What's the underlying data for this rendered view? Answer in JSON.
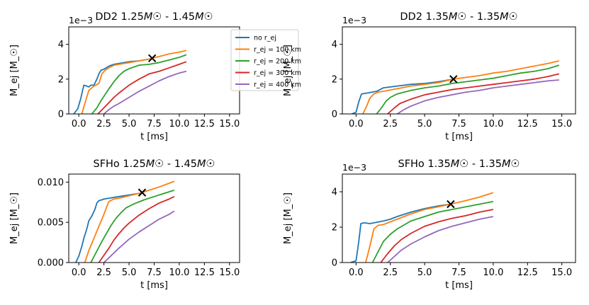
{
  "figure": {
    "ylabel": "M_ej [M_☉]",
    "xlabel": "t [ms]",
    "legend_box_color": "#cccccc"
  },
  "chart_data": [
    {
      "type": "line",
      "title": "DD2 1.25M☉ - 1.45M☉",
      "title_parts": {
        "eos": "DD2",
        "m1": "1.25",
        "m2": "1.45",
        "unit": "M☉"
      },
      "scale_label": "1e−3",
      "xlim": [
        -1,
        16
      ],
      "ylim": [
        0,
        5
      ],
      "xticks": [
        0,
        2.5,
        5,
        7.5,
        10,
        12.5,
        15
      ],
      "xtick_labels": [
        "0.0",
        "2.5",
        "5.0",
        "7.5",
        "10.0",
        "12.5",
        "15.0"
      ],
      "yticks": [
        0,
        2,
        4
      ],
      "ytick_labels": [
        "0",
        "2",
        "4"
      ],
      "legend": true,
      "marker": {
        "x": 7.3,
        "y": 3.2,
        "symbol": "x"
      },
      "series": [
        {
          "name": "no r_ej",
          "color": "#1f77b4",
          "x": [
            -0.5,
            -0.1,
            0.2,
            0.5,
            0.8,
            1.0,
            1.2,
            1.5,
            1.8,
            2.0,
            2.2,
            2.6,
            3.0,
            3.5,
            4.0,
            5.0,
            6.0,
            7.0,
            7.3
          ],
          "y": [
            0,
            0.3,
            0.9,
            1.65,
            1.6,
            1.55,
            1.65,
            1.65,
            2.0,
            2.3,
            2.5,
            2.6,
            2.75,
            2.85,
            2.9,
            3.0,
            3.05,
            3.15,
            3.2
          ]
        },
        {
          "name": "r_ej = 100 km",
          "color": "#ff7f0e",
          "x": [
            0.3,
            0.6,
            1.0,
            1.5,
            2.0,
            2.3,
            2.6,
            3.0,
            3.5,
            4.0,
            5.0,
            6.0,
            7.0,
            7.3,
            8.0,
            9.0,
            10.0,
            10.7
          ],
          "y": [
            0,
            0.6,
            1.35,
            1.6,
            1.75,
            2.3,
            2.5,
            2.65,
            2.8,
            2.85,
            2.95,
            3.05,
            3.15,
            3.2,
            3.3,
            3.45,
            3.55,
            3.65
          ]
        },
        {
          "name": "r_ej = 200 km",
          "color": "#2ca02c",
          "x": [
            1.3,
            1.8,
            2.2,
            2.6,
            3.0,
            3.5,
            4.0,
            4.5,
            5.0,
            6.0,
            7.0,
            8.0,
            9.0,
            10.0,
            10.7
          ],
          "y": [
            0,
            0.35,
            0.75,
            1.1,
            1.45,
            1.85,
            2.2,
            2.45,
            2.6,
            2.8,
            2.85,
            2.95,
            3.1,
            3.25,
            3.4
          ]
        },
        {
          "name": "r_ej = 300 km",
          "color": "#d62728",
          "x": [
            1.9,
            2.5,
            3.0,
            3.5,
            4.0,
            5.0,
            6.0,
            7.0,
            8.0,
            9.0,
            10.0,
            10.7
          ],
          "y": [
            0,
            0.35,
            0.65,
            0.95,
            1.2,
            1.65,
            2.0,
            2.3,
            2.45,
            2.65,
            2.85,
            3.0
          ]
        },
        {
          "name": "r_ej = 400 km",
          "color": "#9467bd",
          "x": [
            2.5,
            3.0,
            3.5,
            4.0,
            5.0,
            6.0,
            7.0,
            8.0,
            9.0,
            10.0,
            10.7
          ],
          "y": [
            0,
            0.25,
            0.45,
            0.6,
            0.95,
            1.3,
            1.6,
            1.9,
            2.15,
            2.35,
            2.45
          ]
        }
      ]
    },
    {
      "type": "line",
      "title": "DD2 1.35M☉ - 1.35M☉",
      "title_parts": {
        "eos": "DD2",
        "m1": "1.35",
        "m2": "1.35",
        "unit": "M☉"
      },
      "scale_label": "1e−3",
      "xlim": [
        -1,
        16
      ],
      "ylim": [
        0,
        5
      ],
      "xticks": [
        0,
        2.5,
        5,
        7.5,
        10,
        12.5,
        15
      ],
      "xtick_labels": [
        "0.0",
        "2.5",
        "5.0",
        "7.5",
        "10.0",
        "12.5",
        "15.0"
      ],
      "yticks": [
        0,
        2,
        4
      ],
      "ytick_labels": [
        "0",
        "2",
        "4"
      ],
      "legend": false,
      "marker": {
        "x": 7.1,
        "y": 2.0,
        "symbol": "x"
      },
      "series": [
        {
          "name": "no r_ej",
          "color": "#1f77b4",
          "x": [
            -0.3,
            0.0,
            0.2,
            0.4,
            0.8,
            1.5,
            2.0,
            3.0,
            4.0,
            5.0,
            6.0,
            7.1
          ],
          "y": [
            0,
            0.1,
            0.7,
            1.15,
            1.2,
            1.3,
            1.5,
            1.6,
            1.7,
            1.75,
            1.85,
            2.0
          ]
        },
        {
          "name": "r_ej = 100 km",
          "color": "#ff7f0e",
          "x": [
            0.5,
            0.8,
            1.0,
            1.3,
            1.6,
            2.0,
            3.0,
            4.0,
            5.0,
            6.0,
            7.1,
            8.0,
            9.0,
            10.0,
            11.0,
            12.0,
            13.0,
            14.0,
            14.8
          ],
          "y": [
            0,
            0.5,
            0.9,
            1.15,
            1.25,
            1.3,
            1.45,
            1.6,
            1.7,
            1.8,
            2.0,
            2.1,
            2.2,
            2.35,
            2.45,
            2.6,
            2.75,
            2.9,
            3.05
          ]
        },
        {
          "name": "r_ej = 200 km",
          "color": "#2ca02c",
          "x": [
            1.5,
            1.9,
            2.2,
            2.5,
            3.0,
            4.0,
            5.0,
            6.0,
            7.0,
            8.0,
            9.0,
            10.0,
            11.0,
            12.0,
            13.0,
            14.0,
            14.8
          ],
          "y": [
            0,
            0.4,
            0.75,
            0.95,
            1.15,
            1.35,
            1.5,
            1.6,
            1.75,
            1.85,
            1.95,
            2.05,
            2.2,
            2.35,
            2.45,
            2.6,
            2.8
          ]
        },
        {
          "name": "r_ej = 300 km",
          "color": "#d62728",
          "x": [
            2.3,
            2.8,
            3.2,
            4.0,
            5.0,
            6.0,
            7.0,
            8.0,
            9.0,
            10.0,
            11.0,
            12.0,
            13.0,
            14.0,
            14.8
          ],
          "y": [
            0,
            0.35,
            0.6,
            0.85,
            1.1,
            1.25,
            1.4,
            1.5,
            1.6,
            1.7,
            1.8,
            1.9,
            2.0,
            2.15,
            2.3
          ]
        },
        {
          "name": "r_ej = 400 km",
          "color": "#9467bd",
          "x": [
            3.0,
            3.5,
            4.0,
            5.0,
            6.0,
            7.0,
            8.0,
            9.0,
            10.0,
            11.0,
            12.0,
            13.0,
            14.0,
            14.8
          ],
          "y": [
            0,
            0.25,
            0.45,
            0.75,
            0.95,
            1.1,
            1.25,
            1.35,
            1.5,
            1.6,
            1.7,
            1.8,
            1.9,
            1.95
          ]
        }
      ]
    },
    {
      "type": "line",
      "title": "SFHo 1.25M☉ - 1.45M☉",
      "title_parts": {
        "eos": "SFHo",
        "m1": "1.25",
        "m2": "1.45",
        "unit": "M☉"
      },
      "scale_label": "",
      "xlim": [
        -1,
        16
      ],
      "ylim": [
        0,
        0.011
      ],
      "xticks": [
        0,
        2.5,
        5,
        7.5,
        10,
        12.5,
        15
      ],
      "xtick_labels": [
        "0.0",
        "2.5",
        "5.0",
        "7.5",
        "10.0",
        "12.5",
        "15.0"
      ],
      "yticks": [
        0,
        0.005,
        0.01
      ],
      "ytick_labels": [
        "0.000",
        "0.005",
        "0.010"
      ],
      "legend": false,
      "marker": {
        "x": 6.3,
        "y": 0.0087,
        "symbol": "x"
      },
      "series": [
        {
          "name": "no r_ej",
          "color": "#1f77b4",
          "x": [
            -0.3,
            0.0,
            0.3,
            0.5,
            0.8,
            1.0,
            1.3,
            1.6,
            1.8,
            2.0,
            2.3,
            2.5,
            3.0,
            3.5,
            4.0,
            5.0,
            6.0,
            6.3
          ],
          "y": [
            0,
            0.0008,
            0.002,
            0.003,
            0.0042,
            0.0052,
            0.0058,
            0.0066,
            0.0074,
            0.0077,
            0.0078,
            0.0079,
            0.008,
            0.0081,
            0.0082,
            0.0084,
            0.0086,
            0.0087
          ]
        },
        {
          "name": "r_ej = 100 km",
          "color": "#ff7f0e",
          "x": [
            0.6,
            1.0,
            1.5,
            2.0,
            2.5,
            2.8,
            3.0,
            3.5,
            4.0,
            5.0,
            6.0,
            6.3,
            7.0,
            8.0,
            9.5
          ],
          "y": [
            0,
            0.0015,
            0.003,
            0.0045,
            0.006,
            0.007,
            0.0076,
            0.0079,
            0.008,
            0.0083,
            0.0086,
            0.0087,
            0.009,
            0.0094,
            0.0101
          ]
        },
        {
          "name": "r_ej = 200 km",
          "color": "#2ca02c",
          "x": [
            1.2,
            1.7,
            2.2,
            2.7,
            3.2,
            3.7,
            4.2,
            4.7,
            5.5,
            6.5,
            7.5,
            8.5,
            9.5
          ],
          "y": [
            0,
            0.0012,
            0.0024,
            0.0035,
            0.0046,
            0.0055,
            0.0062,
            0.0068,
            0.0073,
            0.0078,
            0.0082,
            0.0086,
            0.009
          ]
        },
        {
          "name": "r_ej = 300 km",
          "color": "#d62728",
          "x": [
            2.0,
            2.5,
            3.0,
            3.5,
            4.0,
            4.5,
            5.0,
            6.0,
            7.0,
            8.0,
            9.0,
            9.5
          ],
          "y": [
            0,
            0.0009,
            0.0018,
            0.0028,
            0.0036,
            0.0043,
            0.0049,
            0.0059,
            0.0067,
            0.0074,
            0.0079,
            0.0082
          ]
        },
        {
          "name": "r_ej = 400 km",
          "color": "#9467bd",
          "x": [
            2.5,
            3.0,
            3.5,
            4.0,
            5.0,
            6.0,
            7.0,
            8.0,
            9.0,
            9.5
          ],
          "y": [
            0,
            0.0006,
            0.0012,
            0.0018,
            0.0029,
            0.0038,
            0.0046,
            0.0054,
            0.006,
            0.0064
          ]
        }
      ]
    },
    {
      "type": "line",
      "title": "SFHo 1.35M☉ - 1.35M☉",
      "title_parts": {
        "eos": "SFHo",
        "m1": "1.35",
        "m2": "1.35",
        "unit": "M☉"
      },
      "scale_label": "1e−3",
      "xlim": [
        -1,
        16
      ],
      "ylim": [
        0,
        5
      ],
      "xticks": [
        0,
        2.5,
        5,
        7.5,
        10,
        12.5,
        15
      ],
      "xtick_labels": [
        "0.0",
        "2.5",
        "5.0",
        "7.5",
        "10.0",
        "12.5",
        "15.0"
      ],
      "yticks": [
        0,
        2,
        4
      ],
      "ytick_labels": [
        "0",
        "2",
        "4"
      ],
      "legend": false,
      "marker": {
        "x": 6.9,
        "y": 3.3,
        "symbol": "x"
      },
      "series": [
        {
          "name": "no r_ej",
          "color": "#1f77b4",
          "x": [
            -0.4,
            0.0,
            0.2,
            0.35,
            0.6,
            1.0,
            2.0,
            2.5,
            3.0,
            4.0,
            5.0,
            6.0,
            6.9
          ],
          "y": [
            0,
            0.1,
            1.2,
            2.2,
            2.25,
            2.2,
            2.35,
            2.45,
            2.6,
            2.85,
            3.05,
            3.2,
            3.3
          ]
        },
        {
          "name": "r_ej = 100 km",
          "color": "#ff7f0e",
          "x": [
            0.7,
            1.0,
            1.3,
            1.6,
            2.0,
            2.5,
            3.0,
            4.0,
            5.0,
            6.0,
            6.9,
            8.0,
            9.0,
            10.0
          ],
          "y": [
            0,
            0.9,
            1.9,
            2.1,
            2.15,
            2.3,
            2.45,
            2.75,
            3.0,
            3.15,
            3.3,
            3.5,
            3.7,
            3.95
          ]
        },
        {
          "name": "r_ej = 200 km",
          "color": "#2ca02c",
          "x": [
            1.2,
            1.6,
            2.0,
            2.5,
            3.0,
            4.0,
            5.0,
            6.0,
            7.0,
            8.0,
            9.0,
            10.0
          ],
          "y": [
            0,
            0.6,
            1.2,
            1.6,
            1.9,
            2.35,
            2.6,
            2.85,
            3.0,
            3.15,
            3.3,
            3.45
          ]
        },
        {
          "name": "r_ej = 300 km",
          "color": "#d62728",
          "x": [
            1.8,
            2.3,
            2.8,
            3.3,
            4.0,
            5.0,
            6.0,
            7.0,
            8.0,
            9.0,
            10.0
          ],
          "y": [
            0,
            0.5,
            0.95,
            1.3,
            1.65,
            2.05,
            2.3,
            2.5,
            2.65,
            2.85,
            3.0
          ]
        },
        {
          "name": "r_ej = 400 km",
          "color": "#9467bd",
          "x": [
            2.3,
            2.8,
            3.3,
            4.0,
            5.0,
            6.0,
            7.0,
            8.0,
            9.0,
            10.0
          ],
          "y": [
            0,
            0.35,
            0.7,
            1.05,
            1.45,
            1.8,
            2.05,
            2.25,
            2.45,
            2.6
          ]
        }
      ]
    }
  ]
}
